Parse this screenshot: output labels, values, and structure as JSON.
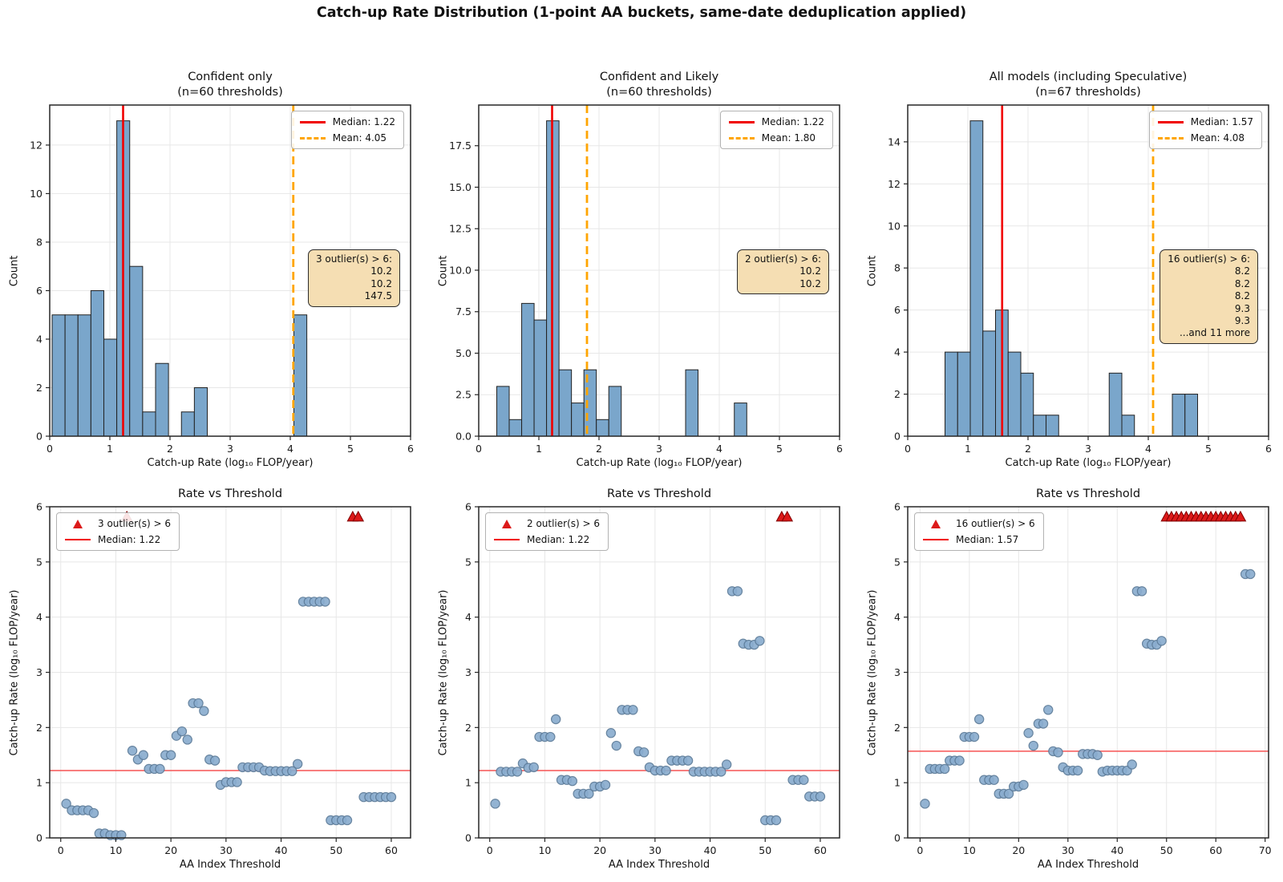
{
  "figure": {
    "title": "Catch-up Rate Distribution (1-point AA buckets, same-date deduplication applied)"
  },
  "colors": {
    "bar_fill": "#7aa6cb",
    "bar_edge": "#222222",
    "median_color": "#f10000",
    "scatter_median_color": "#f65454",
    "mean_color": "#ffa500",
    "point_fill": "#8aadcf",
    "point_edge": "#5c7b99",
    "triangle_fill": "#dc1a1a",
    "triangle_edge": "#7f0000",
    "annotation_bg": "#f5deb3",
    "grid": "#e7e7e7",
    "spine": "#262626"
  },
  "chart_data": [
    {
      "type": "histogram",
      "title": "Confident only\n(n=60 thresholds)",
      "xlabel": "Catch-up Rate (log₁₀ FLOP/year)",
      "ylabel": "Count",
      "xlim": [
        0,
        6
      ],
      "ylim": [
        0,
        13.65
      ],
      "xtick_values": [
        0,
        1,
        2,
        3,
        4,
        5,
        6
      ],
      "xtick_labels": [
        "0",
        "1",
        "2",
        "3",
        "4",
        "5",
        "6"
      ],
      "ytick_values": [
        0,
        2,
        4,
        6,
        8,
        10,
        12
      ],
      "ytick_labels": [
        "0",
        "2",
        "4",
        "6",
        "8",
        "10",
        "12"
      ],
      "bars": [
        [
          0.04,
          0.255,
          5
        ],
        [
          0.255,
          0.47,
          5
        ],
        [
          0.47,
          0.685,
          5
        ],
        [
          0.685,
          0.9,
          6
        ],
        [
          0.9,
          1.115,
          4
        ],
        [
          1.115,
          1.33,
          13
        ],
        [
          1.33,
          1.545,
          7
        ],
        [
          1.545,
          1.76,
          1
        ],
        [
          1.76,
          1.975,
          3
        ],
        [
          2.19,
          2.405,
          1
        ],
        [
          2.405,
          2.62,
          2
        ],
        [
          4.06,
          4.275,
          5
        ]
      ],
      "median": {
        "value": 1.22,
        "label": "Median: 1.22"
      },
      "mean": {
        "value": 4.05,
        "label": "Mean: 4.05"
      },
      "legend": {
        "pos": "right",
        "items": [
          {
            "marker": "line",
            "label": "Median: 1.22"
          },
          {
            "marker": "dash",
            "label": "Mean: 4.05"
          }
        ]
      },
      "annotation": {
        "lines": "3 outlier(s) > 6:\n10.2\n10.2\n147.5"
      }
    },
    {
      "type": "histogram",
      "title": "Confident and Likely\n(n=60 thresholds)",
      "xlabel": "Catch-up Rate (log₁₀ FLOP/year)",
      "ylabel": "Count",
      "xlim": [
        0,
        6
      ],
      "ylim": [
        0,
        19.95
      ],
      "xtick_values": [
        0,
        1,
        2,
        3,
        4,
        5,
        6
      ],
      "xtick_labels": [
        "0",
        "1",
        "2",
        "3",
        "4",
        "5",
        "6"
      ],
      "ytick_values": [
        0,
        2.5,
        5,
        7.5,
        10,
        12.5,
        15,
        17.5
      ],
      "ytick_labels": [
        "0.0",
        "2.5",
        "5.0",
        "7.5",
        "10.0",
        "12.5",
        "15.0",
        "17.5"
      ],
      "bars": [
        [
          0.3,
          0.507,
          3
        ],
        [
          0.507,
          0.714,
          1
        ],
        [
          0.714,
          0.921,
          8
        ],
        [
          0.921,
          1.128,
          7
        ],
        [
          1.128,
          1.335,
          19
        ],
        [
          1.335,
          1.542,
          4
        ],
        [
          1.542,
          1.749,
          2
        ],
        [
          1.749,
          1.956,
          4
        ],
        [
          1.956,
          2.163,
          1
        ],
        [
          2.163,
          2.37,
          3
        ],
        [
          3.44,
          3.647,
          4
        ],
        [
          4.25,
          4.457,
          2
        ]
      ],
      "median": {
        "value": 1.22,
        "label": "Median: 1.22"
      },
      "mean": {
        "value": 1.8,
        "label": "Mean: 1.80"
      },
      "legend": {
        "pos": "right",
        "items": [
          {
            "marker": "line",
            "label": "Median: 1.22"
          },
          {
            "marker": "dash",
            "label": "Mean: 1.80"
          }
        ]
      },
      "annotation": {
        "lines": "2 outlier(s) > 6:\n10.2\n10.2"
      }
    },
    {
      "type": "histogram",
      "title": "All models (including Speculative)\n(n=67 thresholds)",
      "xlabel": "Catch-up Rate (log₁₀ FLOP/year)",
      "ylabel": "Count",
      "xlim": [
        0,
        6
      ],
      "ylim": [
        0,
        15.75
      ],
      "xtick_values": [
        0,
        1,
        2,
        3,
        4,
        5,
        6
      ],
      "xtick_labels": [
        "0",
        "1",
        "2",
        "3",
        "4",
        "5",
        "6"
      ],
      "ytick_values": [
        0,
        2,
        4,
        6,
        8,
        10,
        12,
        14
      ],
      "ytick_labels": [
        "0",
        "2",
        "4",
        "6",
        "8",
        "10",
        "12",
        "14"
      ],
      "bars": [
        [
          0.62,
          0.83,
          4
        ],
        [
          0.83,
          1.04,
          4
        ],
        [
          1.04,
          1.25,
          15
        ],
        [
          1.25,
          1.46,
          5
        ],
        [
          1.46,
          1.67,
          6
        ],
        [
          1.67,
          1.88,
          4
        ],
        [
          1.88,
          2.09,
          3
        ],
        [
          2.09,
          2.3,
          1
        ],
        [
          2.3,
          2.51,
          1
        ],
        [
          3.35,
          3.56,
          3
        ],
        [
          3.56,
          3.77,
          1
        ],
        [
          4.4,
          4.61,
          2
        ],
        [
          4.61,
          4.82,
          2
        ]
      ],
      "median": {
        "value": 1.57,
        "label": "Median: 1.57"
      },
      "mean": {
        "value": 4.08,
        "label": "Mean: 4.08"
      },
      "legend": {
        "pos": "right",
        "items": [
          {
            "marker": "line",
            "label": "Median: 1.57"
          },
          {
            "marker": "dash",
            "label": "Mean: 4.08"
          }
        ]
      },
      "annotation": {
        "lines": "16 outlier(s) > 6:\n8.2\n8.2\n8.2\n9.3\n9.3\n...and 11 more"
      }
    },
    {
      "type": "scatter",
      "title": "Rate vs Threshold",
      "xlabel": "AA Index Threshold",
      "ylabel": "Catch-up Rate (log₁₀ FLOP/year)",
      "xlim": [
        -2,
        63.5
      ],
      "ylim": [
        0,
        6
      ],
      "xtick_values": [
        0,
        10,
        20,
        30,
        40,
        50,
        60
      ],
      "xtick_labels": [
        "0",
        "10",
        "20",
        "30",
        "40",
        "50",
        "60"
      ],
      "ytick_values": [
        0,
        1,
        2,
        3,
        4,
        5,
        6
      ],
      "ytick_labels": [
        "0",
        "1",
        "2",
        "3",
        "4",
        "5",
        "6"
      ],
      "points": [
        [
          1,
          0.62
        ],
        [
          2,
          0.5
        ],
        [
          3,
          0.5
        ],
        [
          4,
          0.5
        ],
        [
          5,
          0.5
        ],
        [
          6,
          0.45
        ],
        [
          7,
          0.08
        ],
        [
          8,
          0.08
        ],
        [
          9,
          0.05
        ],
        [
          10,
          0.05
        ],
        [
          11,
          0.05
        ],
        [
          13,
          1.58
        ],
        [
          14,
          1.42
        ],
        [
          15,
          1.5
        ],
        [
          16,
          1.25
        ],
        [
          17,
          1.25
        ],
        [
          18,
          1.25
        ],
        [
          19,
          1.5
        ],
        [
          20,
          1.5
        ],
        [
          21,
          1.85
        ],
        [
          22,
          1.93
        ],
        [
          23,
          1.78
        ],
        [
          24,
          2.44
        ],
        [
          25,
          2.44
        ],
        [
          26,
          2.3
        ],
        [
          27,
          1.42
        ],
        [
          28,
          1.4
        ],
        [
          29,
          0.96
        ],
        [
          30,
          1.01
        ],
        [
          31,
          1.01
        ],
        [
          32,
          1.01
        ],
        [
          33,
          1.28
        ],
        [
          34,
          1.28
        ],
        [
          35,
          1.28
        ],
        [
          36,
          1.28
        ],
        [
          37,
          1.22
        ],
        [
          38,
          1.21
        ],
        [
          39,
          1.21
        ],
        [
          40,
          1.21
        ],
        [
          41,
          1.21
        ],
        [
          42,
          1.21
        ],
        [
          43,
          1.34
        ],
        [
          44,
          4.28
        ],
        [
          45,
          4.28
        ],
        [
          46,
          4.28
        ],
        [
          47,
          4.28
        ],
        [
          48,
          4.28
        ],
        [
          49,
          0.32
        ],
        [
          50,
          0.32
        ],
        [
          51,
          0.32
        ],
        [
          52,
          0.32
        ],
        [
          55,
          0.74
        ],
        [
          56,
          0.74
        ],
        [
          57,
          0.74
        ],
        [
          58,
          0.74
        ],
        [
          59,
          0.74
        ],
        [
          60,
          0.74
        ]
      ],
      "outlier_x": [
        12,
        53,
        54
      ],
      "outlier_y": 5.82,
      "median": {
        "value": 1.22,
        "label": "Median: 1.22"
      },
      "legend": {
        "pos": "left",
        "items": [
          {
            "marker": "triangle",
            "label": "3 outlier(s) > 6"
          },
          {
            "marker": "thinline",
            "label": "Median: 1.22"
          }
        ]
      },
      "annotation": null
    },
    {
      "type": "scatter",
      "title": "Rate vs Threshold",
      "xlabel": "AA Index Threshold",
      "ylabel": "Catch-up Rate (log₁₀ FLOP/year)",
      "xlim": [
        -2,
        63.5
      ],
      "ylim": [
        0,
        6
      ],
      "xtick_values": [
        0,
        10,
        20,
        30,
        40,
        50,
        60
      ],
      "xtick_labels": [
        "0",
        "10",
        "20",
        "30",
        "40",
        "50",
        "60"
      ],
      "ytick_values": [
        0,
        1,
        2,
        3,
        4,
        5,
        6
      ],
      "ytick_labels": [
        "0",
        "1",
        "2",
        "3",
        "4",
        "5",
        "6"
      ],
      "points": [
        [
          1,
          0.62
        ],
        [
          2,
          1.2
        ],
        [
          3,
          1.2
        ],
        [
          4,
          1.2
        ],
        [
          5,
          1.2
        ],
        [
          6,
          1.35
        ],
        [
          7,
          1.27
        ],
        [
          8,
          1.28
        ],
        [
          9,
          1.83
        ],
        [
          10,
          1.83
        ],
        [
          11,
          1.83
        ],
        [
          12,
          2.15
        ],
        [
          13,
          1.05
        ],
        [
          14,
          1.05
        ],
        [
          15,
          1.03
        ],
        [
          16,
          0.8
        ],
        [
          17,
          0.8
        ],
        [
          18,
          0.8
        ],
        [
          19,
          0.93
        ],
        [
          20,
          0.93
        ],
        [
          21,
          0.96
        ],
        [
          22,
          1.9
        ],
        [
          23,
          1.67
        ],
        [
          24,
          2.32
        ],
        [
          25,
          2.32
        ],
        [
          26,
          2.32
        ],
        [
          27,
          1.57
        ],
        [
          28,
          1.55
        ],
        [
          29,
          1.28
        ],
        [
          30,
          1.22
        ],
        [
          31,
          1.22
        ],
        [
          32,
          1.22
        ],
        [
          33,
          1.4
        ],
        [
          34,
          1.4
        ],
        [
          35,
          1.4
        ],
        [
          36,
          1.4
        ],
        [
          37,
          1.2
        ],
        [
          38,
          1.2
        ],
        [
          39,
          1.2
        ],
        [
          40,
          1.2
        ],
        [
          41,
          1.2
        ],
        [
          42,
          1.2
        ],
        [
          43,
          1.33
        ],
        [
          44,
          4.47
        ],
        [
          45,
          4.47
        ],
        [
          46,
          3.52
        ],
        [
          47,
          3.5
        ],
        [
          48,
          3.5
        ],
        [
          49,
          3.57
        ],
        [
          50,
          0.32
        ],
        [
          51,
          0.32
        ],
        [
          52,
          0.32
        ],
        [
          55,
          1.05
        ],
        [
          56,
          1.05
        ],
        [
          57,
          1.05
        ],
        [
          58,
          0.75
        ],
        [
          59,
          0.75
        ],
        [
          60,
          0.75
        ]
      ],
      "outlier_x": [
        53,
        54
      ],
      "outlier_y": 5.82,
      "median": {
        "value": 1.22,
        "label": "Median: 1.22"
      },
      "legend": {
        "pos": "left",
        "items": [
          {
            "marker": "triangle",
            "label": "2 outlier(s) > 6"
          },
          {
            "marker": "thinline",
            "label": "Median: 1.22"
          }
        ]
      },
      "annotation": null
    },
    {
      "type": "scatter",
      "title": "Rate vs Threshold",
      "xlabel": "AA Index Threshold",
      "ylabel": "Catch-up Rate (log₁₀ FLOP/year)",
      "xlim": [
        -2.5,
        70.7
      ],
      "ylim": [
        0,
        6
      ],
      "xtick_values": [
        0,
        10,
        20,
        30,
        40,
        50,
        60,
        70
      ],
      "xtick_labels": [
        "0",
        "10",
        "20",
        "30",
        "40",
        "50",
        "60",
        "70"
      ],
      "ytick_values": [
        0,
        1,
        2,
        3,
        4,
        5,
        6
      ],
      "ytick_labels": [
        "0",
        "1",
        "2",
        "3",
        "4",
        "5",
        "6"
      ],
      "points": [
        [
          1,
          0.62
        ],
        [
          2,
          1.25
        ],
        [
          3,
          1.25
        ],
        [
          4,
          1.25
        ],
        [
          5,
          1.25
        ],
        [
          6,
          1.4
        ],
        [
          7,
          1.4
        ],
        [
          8,
          1.4
        ],
        [
          9,
          1.83
        ],
        [
          10,
          1.83
        ],
        [
          11,
          1.83
        ],
        [
          12,
          2.15
        ],
        [
          13,
          1.05
        ],
        [
          14,
          1.05
        ],
        [
          15,
          1.05
        ],
        [
          16,
          0.8
        ],
        [
          17,
          0.8
        ],
        [
          18,
          0.8
        ],
        [
          19,
          0.93
        ],
        [
          20,
          0.93
        ],
        [
          21,
          0.96
        ],
        [
          22,
          1.9
        ],
        [
          23,
          1.67
        ],
        [
          24,
          2.07
        ],
        [
          25,
          2.07
        ],
        [
          26,
          2.32
        ],
        [
          27,
          1.57
        ],
        [
          28,
          1.55
        ],
        [
          29,
          1.28
        ],
        [
          30,
          1.22
        ],
        [
          31,
          1.22
        ],
        [
          32,
          1.22
        ],
        [
          33,
          1.52
        ],
        [
          34,
          1.52
        ],
        [
          35,
          1.52
        ],
        [
          36,
          1.5
        ],
        [
          37,
          1.2
        ],
        [
          38,
          1.22
        ],
        [
          39,
          1.22
        ],
        [
          40,
          1.22
        ],
        [
          41,
          1.22
        ],
        [
          42,
          1.22
        ],
        [
          43,
          1.33
        ],
        [
          44,
          4.47
        ],
        [
          45,
          4.47
        ],
        [
          46,
          3.52
        ],
        [
          47,
          3.5
        ],
        [
          48,
          3.5
        ],
        [
          49,
          3.57
        ],
        [
          66,
          4.78
        ],
        [
          67,
          4.78
        ]
      ],
      "outlier_x": [
        50,
        51,
        52,
        53,
        54,
        55,
        56,
        57,
        58,
        59,
        60,
        61,
        62,
        63,
        64,
        65
      ],
      "outlier_y": 5.82,
      "median": {
        "value": 1.57,
        "label": "Median: 1.57"
      },
      "legend": {
        "pos": "left",
        "items": [
          {
            "marker": "triangle",
            "label": "16 outlier(s) > 6"
          },
          {
            "marker": "thinline",
            "label": "Median: 1.57"
          }
        ]
      },
      "annotation": null
    }
  ]
}
